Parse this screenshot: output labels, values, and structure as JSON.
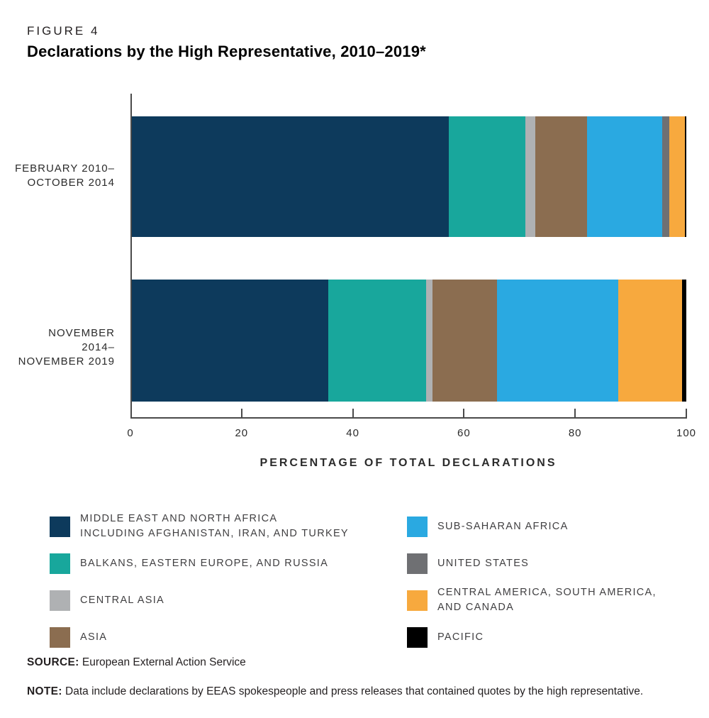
{
  "figure_label": "FIGURE 4",
  "title": "Declarations by the High Representative, 2010–2019*",
  "chart_data": {
    "type": "bar",
    "stacked": true,
    "orientation": "horizontal",
    "categories": [
      "FEBRUARY 2010–OCTOBER 2014",
      "NOVEMBER 2014–NOVEMBER 2019"
    ],
    "category_labels": [
      [
        "FEBRUARY 2010–",
        "OCTOBER 2014"
      ],
      [
        "NOVEMBER 2014–",
        "NOVEMBER 2019"
      ]
    ],
    "xlabel": "PERCENTAGE OF TOTAL DECLARATIONS",
    "xlim": [
      0,
      100
    ],
    "x_ticks": [
      0,
      20,
      40,
      60,
      80,
      100
    ],
    "grid": false,
    "legend_position": "bottom-two-columns",
    "series": [
      {
        "id": "mena",
        "name": "MIDDLE EAST AND NORTH AFRICA INCLUDING AFGHANISTAN, IRAN, AND TURKEY",
        "color": "#0d3a5c",
        "values": [
          57.2,
          35.4
        ]
      },
      {
        "id": "balkans",
        "name": "BALKANS, EASTERN EUROPE, AND RUSSIA",
        "color": "#18a79c",
        "values": [
          13.8,
          17.7
        ]
      },
      {
        "id": "central-asia",
        "name": "CENTRAL ASIA",
        "color": "#afb1b3",
        "values": [
          1.8,
          1.1
        ]
      },
      {
        "id": "asia",
        "name": "ASIA",
        "color": "#8b6d50",
        "values": [
          9.3,
          11.6
        ]
      },
      {
        "id": "sub-saharan-africa",
        "name": "SUB-SAHARAN AFRICA",
        "color": "#2aa9e1",
        "values": [
          13.5,
          21.9
        ]
      },
      {
        "id": "united-states",
        "name": "UNITED STATES",
        "color": "#6f7073",
        "values": [
          1.4,
          0
        ]
      },
      {
        "id": "central-america",
        "name": "CENTRAL AMERICA, SOUTH AMERICA, AND CANADA",
        "color": "#f7a93e",
        "values": [
          2.7,
          11.5
        ]
      },
      {
        "id": "pacific",
        "name": "PACIFIC",
        "color": "#000000",
        "values": [
          0.3,
          0.8
        ]
      }
    ]
  },
  "legend": {
    "columns": [
      [
        {
          "color": "#0d3a5c",
          "lines": [
            "MIDDLE EAST AND NORTH AFRICA",
            "INCLUDING AFGHANISTAN, IRAN, AND TURKEY"
          ]
        },
        {
          "color": "#18a79c",
          "lines": [
            "BALKANS, EASTERN EUROPE, AND RUSSIA"
          ]
        },
        {
          "color": "#afb1b3",
          "lines": [
            "CENTRAL ASIA"
          ]
        },
        {
          "color": "#8b6d50",
          "lines": [
            "ASIA"
          ]
        }
      ],
      [
        {
          "color": "#2aa9e1",
          "lines": [
            "SUB-SAHARAN AFRICA"
          ]
        },
        {
          "color": "#6f7073",
          "lines": [
            "UNITED STATES"
          ]
        },
        {
          "color": "#f7a93e",
          "lines": [
            "CENTRAL AMERICA, SOUTH AMERICA,",
            "AND CANADA"
          ]
        },
        {
          "color": "#000000",
          "lines": [
            "PACIFIC"
          ]
        }
      ]
    ]
  },
  "source": {
    "label": "SOURCE:",
    "text": "European External Action Service"
  },
  "note": {
    "label": "NOTE:",
    "text": "Data include declarations by EEAS spokespeople and press releases that contained quotes by the high representative."
  }
}
